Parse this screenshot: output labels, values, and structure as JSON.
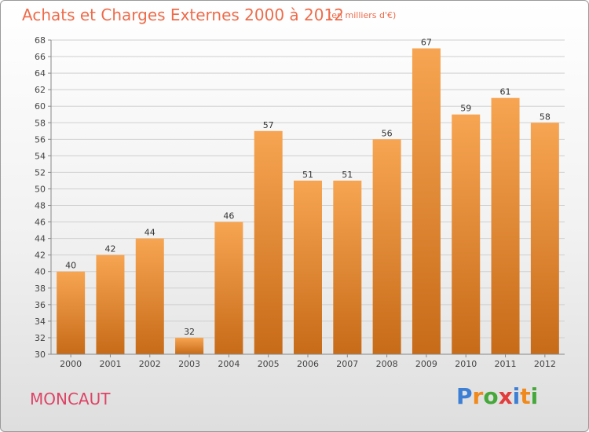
{
  "header": {
    "title": "Achats et Charges Externes 2000 à 2012",
    "unit": "(en milliers d'€)"
  },
  "footer": {
    "place": "MONCAUT",
    "logo": {
      "letters": [
        "P",
        "r",
        "o",
        "x",
        "i",
        "t",
        "i"
      ],
      "colors": [
        "#3d7fd4",
        "#f08a1c",
        "#46a83a",
        "#e23c3c",
        "#3d7fd4",
        "#f08a1c",
        "#46a83a"
      ]
    }
  },
  "chart_data": {
    "type": "bar",
    "categories": [
      "2000",
      "2001",
      "2002",
      "2003",
      "2004",
      "2005",
      "2006",
      "2007",
      "2008",
      "2009",
      "2010",
      "2011",
      "2012"
    ],
    "values": [
      40,
      42,
      44,
      32,
      46,
      57,
      51,
      51,
      56,
      67,
      59,
      61,
      58
    ],
    "data_labels": [
      "40",
      "42",
      "44",
      "32",
      "46",
      "57",
      "51",
      "51",
      "56",
      "67",
      "59",
      "61",
      "58"
    ],
    "ylim": [
      30,
      68
    ],
    "yticks": [
      "30",
      "32",
      "34",
      "36",
      "38",
      "40",
      "42",
      "44",
      "46",
      "48",
      "50",
      "52",
      "54",
      "56",
      "58",
      "60",
      "62",
      "64",
      "66",
      "68"
    ],
    "grid": true,
    "colors": {
      "bar_top": "#f7a552",
      "bar_bottom": "#c76b18",
      "grid": "#cfcfcf",
      "axis": "#888888"
    }
  }
}
